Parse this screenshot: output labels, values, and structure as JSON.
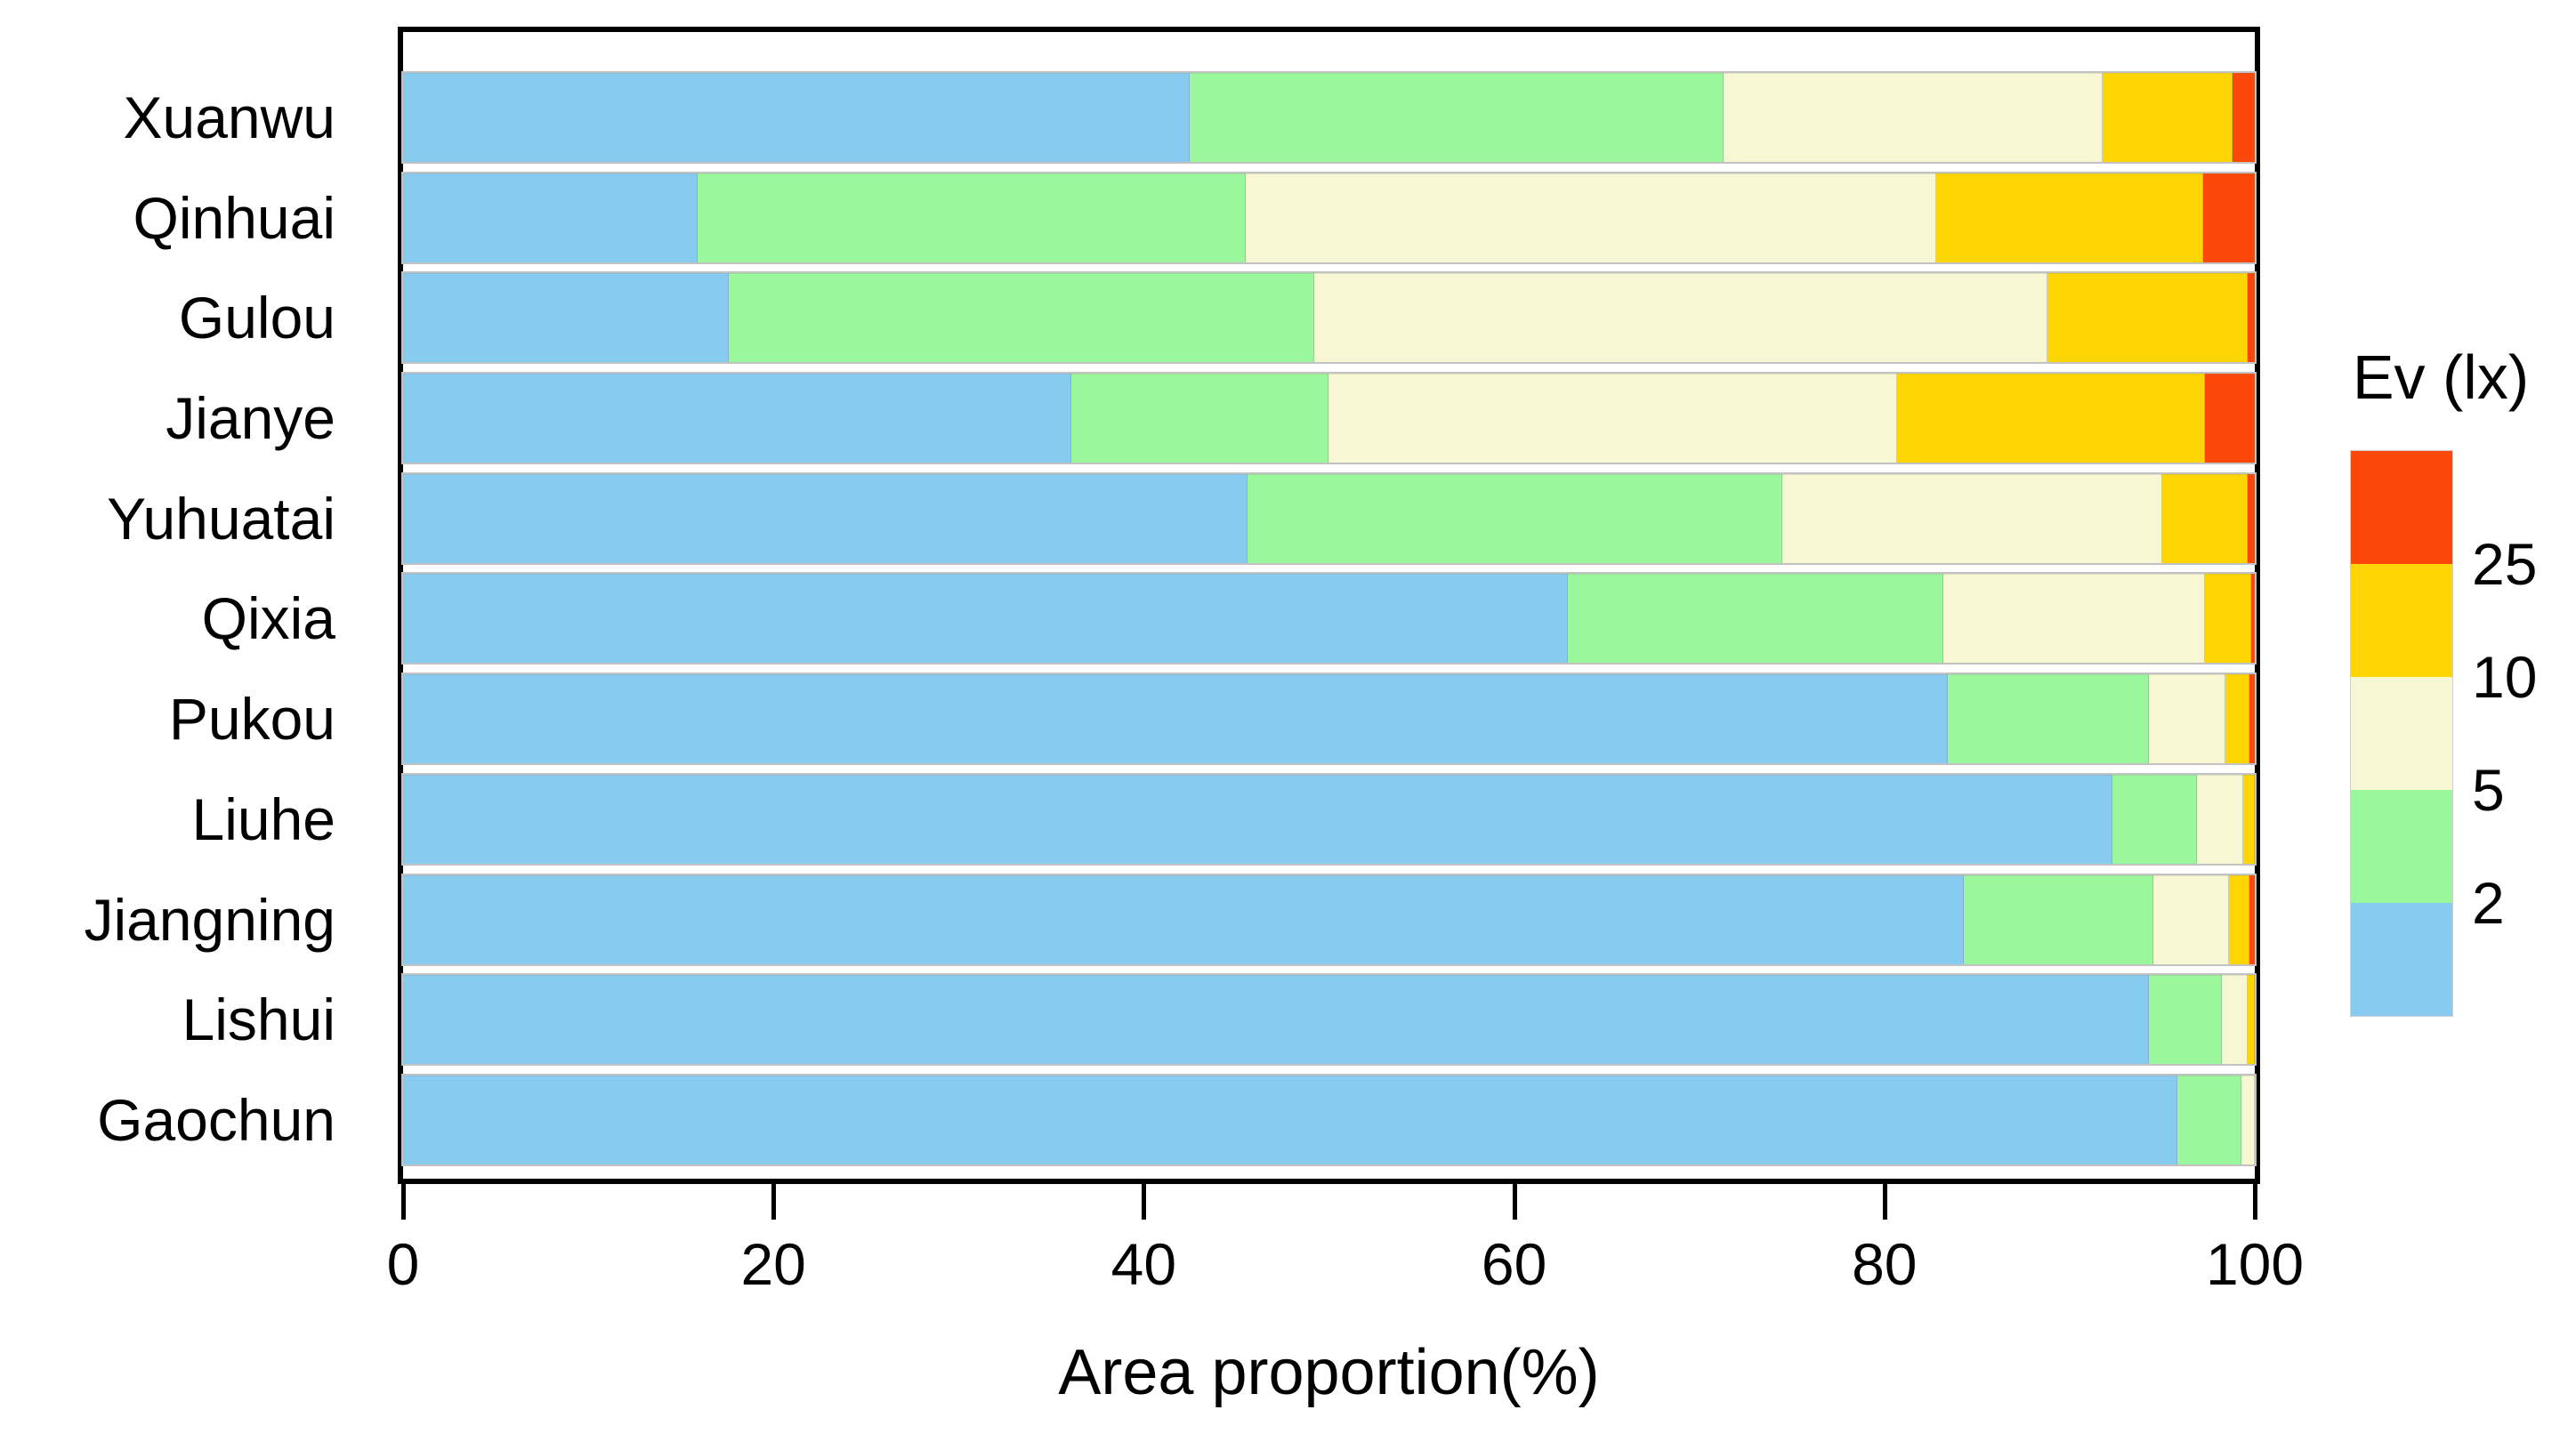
{
  "chart_data": {
    "type": "bar",
    "stacked": true,
    "orientation": "horizontal",
    "title": "",
    "xlabel": "Area proportion(%)",
    "ylabel": "",
    "xlim": [
      0,
      100
    ],
    "xticks": [
      "0",
      "20",
      "40",
      "60",
      "80",
      "100"
    ],
    "grid": false,
    "categories": [
      "Xuanwu",
      "Qinhuai",
      "Gulou",
      "Jianye",
      "Yuhuatai",
      "Qixia",
      "Pukou",
      "Liuhe",
      "Jiangning",
      "Lishui",
      "Gaochun"
    ],
    "series": [
      {
        "key": "ev-below-2",
        "color": "#87CBF0",
        "values": [
          42.5,
          15.9,
          17.6,
          36.1,
          45.6,
          62.9,
          83.4,
          92.3,
          84.3,
          94.3,
          95.8
        ]
      },
      {
        "key": "ev-2-5",
        "color": "#9AF79B",
        "values": [
          28.8,
          29.6,
          31.6,
          13.9,
          28.9,
          20.3,
          10.9,
          4.6,
          10.2,
          3.9,
          3.5
        ]
      },
      {
        "key": "ev-5-10",
        "color": "#F7F7D4",
        "values": [
          20.5,
          37.3,
          39.6,
          30.7,
          20.5,
          14.1,
          4.1,
          2.5,
          4.1,
          1.4,
          0.7
        ]
      },
      {
        "key": "ev-10-25",
        "color": "#FFD503",
        "values": [
          7.0,
          14.4,
          10.8,
          16.6,
          4.6,
          2.5,
          1.3,
          0.6,
          1.1,
          0.4,
          0.0
        ]
      },
      {
        "key": "ev-above-25",
        "color": "#FB4708",
        "values": [
          1.2,
          2.8,
          0.4,
          2.7,
          0.4,
          0.2,
          0.3,
          0.0,
          0.3,
          0.0,
          0.0
        ]
      }
    ],
    "legend": {
      "title": "Ev (lx)",
      "position": "right",
      "swatch_colors_top_to_bottom": [
        "#FB4708",
        "#FFD503",
        "#F7F7D4",
        "#9AF79B",
        "#87CBF0"
      ],
      "boundary_labels_top_to_bottom": [
        "25",
        "10",
        "5",
        "2"
      ]
    }
  }
}
